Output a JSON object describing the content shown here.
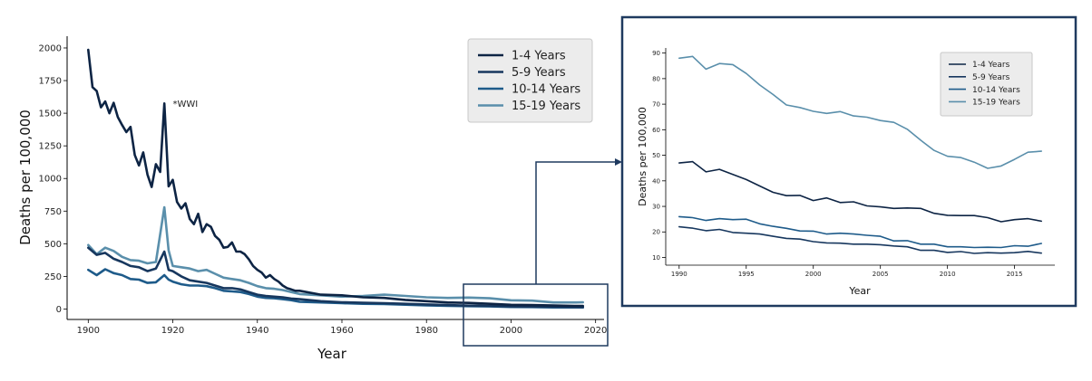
{
  "chart_data": [
    {
      "type": "line",
      "xlabel": "Year",
      "ylabel": "Deaths per 100,000",
      "xlim": [
        1895,
        2022
      ],
      "ylim": [
        -80,
        2090
      ],
      "xticks": [
        1900,
        1920,
        1940,
        1960,
        1980,
        2000,
        2020
      ],
      "yticks": [
        0,
        250,
        500,
        750,
        1000,
        1250,
        1500,
        1750,
        2000
      ],
      "legend_position": "top-right",
      "annotation": {
        "text": "*WWI",
        "x": 1920,
        "y": 1550
      },
      "grid": false,
      "series": [
        {
          "name": "1-4 Years",
          "color": "#0d2444",
          "x": [
            1900,
            1901,
            1902,
            1903,
            1904,
            1905,
            1906,
            1907,
            1908,
            1909,
            1910,
            1911,
            1912,
            1913,
            1914,
            1915,
            1916,
            1917,
            1918,
            1919,
            1920,
            1921,
            1922,
            1923,
            1924,
            1925,
            1926,
            1927,
            1928,
            1929,
            1930,
            1931,
            1932,
            1933,
            1934,
            1935,
            1936,
            1937,
            1938,
            1939,
            1940,
            1941,
            1942,
            1943,
            1944,
            1945,
            1946,
            1947,
            1948,
            1949,
            1950,
            1955,
            1960,
            1965,
            1970,
            1975,
            1980,
            1985,
            1990,
            1995,
            2000,
            2005,
            2010,
            2015,
            2017
          ],
          "values": [
            1985,
            1700,
            1670,
            1545,
            1590,
            1500,
            1580,
            1470,
            1410,
            1355,
            1395,
            1180,
            1100,
            1200,
            1030,
            935,
            1110,
            1050,
            1575,
            940,
            990,
            820,
            770,
            810,
            690,
            650,
            730,
            590,
            650,
            630,
            560,
            530,
            470,
            475,
            510,
            440,
            440,
            420,
            380,
            330,
            300,
            280,
            240,
            260,
            230,
            210,
            180,
            160,
            150,
            140,
            140,
            110,
            105,
            90,
            85,
            70,
            60,
            50,
            47,
            40,
            32,
            30,
            27,
            24,
            24
          ]
        },
        {
          "name": "5-9 Years",
          "color": "#17375e",
          "x": [
            1900,
            1902,
            1904,
            1906,
            1908,
            1910,
            1912,
            1914,
            1916,
            1918,
            1919,
            1920,
            1922,
            1924,
            1926,
            1928,
            1930,
            1932,
            1934,
            1936,
            1938,
            1940,
            1942,
            1944,
            1946,
            1948,
            1950,
            1955,
            1960,
            1965,
            1970,
            1975,
            1980,
            1985,
            1990,
            1995,
            2000,
            2005,
            2010,
            2015,
            2017
          ],
          "values": [
            470,
            415,
            430,
            385,
            360,
            330,
            320,
            290,
            310,
            440,
            300,
            290,
            250,
            220,
            210,
            200,
            180,
            160,
            160,
            150,
            130,
            110,
            100,
            95,
            90,
            80,
            75,
            60,
            52,
            48,
            45,
            40,
            35,
            30,
            26,
            24,
            20,
            19,
            18,
            16,
            15
          ]
        },
        {
          "name": "10-14 Years",
          "color": "#1e5b8a",
          "x": [
            1900,
            1902,
            1904,
            1906,
            1908,
            1910,
            1912,
            1914,
            1916,
            1918,
            1919,
            1920,
            1922,
            1924,
            1926,
            1928,
            1930,
            1932,
            1934,
            1936,
            1938,
            1940,
            1942,
            1944,
            1946,
            1948,
            1950,
            1955,
            1960,
            1965,
            1970,
            1975,
            1980,
            1985,
            1990,
            1995,
            2000,
            2005,
            2010,
            2015,
            2017
          ],
          "values": [
            300,
            260,
            305,
            275,
            260,
            230,
            225,
            200,
            205,
            260,
            225,
            210,
            190,
            180,
            180,
            175,
            160,
            140,
            135,
            130,
            115,
            95,
            85,
            82,
            75,
            68,
            55,
            50,
            45,
            40,
            38,
            33,
            28,
            25,
            22,
            20,
            16,
            15,
            12,
            12,
            12
          ]
        },
        {
          "name": "15-19 Years",
          "color": "#5a8fab",
          "x": [
            1900,
            1902,
            1904,
            1906,
            1908,
            1910,
            1912,
            1914,
            1916,
            1918,
            1919,
            1920,
            1922,
            1924,
            1926,
            1928,
            1930,
            1932,
            1934,
            1936,
            1938,
            1940,
            1942,
            1944,
            1946,
            1948,
            1950,
            1955,
            1960,
            1965,
            1970,
            1975,
            1980,
            1985,
            1990,
            1995,
            2000,
            2005,
            2010,
            2015,
            2017
          ],
          "values": [
            490,
            420,
            470,
            445,
            400,
            375,
            370,
            350,
            360,
            780,
            450,
            330,
            320,
            310,
            290,
            300,
            270,
            240,
            230,
            220,
            200,
            175,
            160,
            155,
            145,
            130,
            115,
            105,
            95,
            100,
            110,
            100,
            90,
            85,
            88,
            82,
            67,
            64,
            50,
            50,
            52
          ]
        }
      ]
    },
    {
      "type": "line",
      "xlabel": "Year",
      "ylabel": "Deaths per 100,000",
      "xlim": [
        1989,
        2018
      ],
      "ylim": [
        7,
        92
      ],
      "xticks": [
        1990,
        1995,
        2000,
        2005,
        2010,
        2015
      ],
      "yticks": [
        10,
        20,
        30,
        40,
        50,
        60,
        70,
        80,
        90
      ],
      "legend_position": "top-right",
      "grid": false,
      "series": [
        {
          "name": "1-4 Years",
          "color": "#0d2444",
          "x": [
            1990,
            1991,
            1992,
            1993,
            1994,
            1995,
            1996,
            1997,
            1998,
            1999,
            2000,
            2001,
            2002,
            2003,
            2004,
            2005,
            2006,
            2007,
            2008,
            2009,
            2010,
            2011,
            2012,
            2013,
            2014,
            2015,
            2016,
            2017
          ],
          "values": [
            47,
            47.5,
            43.5,
            44.5,
            42.5,
            40.5,
            38,
            35.5,
            34.2,
            34.3,
            32.3,
            33.3,
            31.5,
            31.8,
            30.2,
            29.8,
            29.2,
            29.4,
            29.2,
            27.3,
            26.5,
            26.4,
            26.4,
            25.6,
            24,
            24.8,
            25.2,
            24.2
          ]
        },
        {
          "name": "5-9 Years",
          "color": "#17375e",
          "x": [
            1990,
            1991,
            1992,
            1993,
            1994,
            1995,
            1996,
            1997,
            1998,
            1999,
            2000,
            2001,
            2002,
            2003,
            2004,
            2005,
            2006,
            2007,
            2008,
            2009,
            2010,
            2011,
            2012,
            2013,
            2014,
            2015,
            2016,
            2017
          ],
          "values": [
            22,
            21.5,
            20.5,
            21,
            19.8,
            19.5,
            19.2,
            18.3,
            17.5,
            17.2,
            16.2,
            15.7,
            15.6,
            15.2,
            15.2,
            15,
            14.5,
            14.2,
            12.8,
            12.8,
            12,
            12.3,
            11.6,
            11.9,
            11.7,
            11.9,
            12.4,
            11.7
          ]
        },
        {
          "name": "10-14 Years",
          "color": "#1e5b8a",
          "x": [
            1990,
            1991,
            1992,
            1993,
            1994,
            1995,
            1996,
            1997,
            1998,
            1999,
            2000,
            2001,
            2002,
            2003,
            2004,
            2005,
            2006,
            2007,
            2008,
            2009,
            2010,
            2011,
            2012,
            2013,
            2014,
            2015,
            2016,
            2017
          ],
          "values": [
            26,
            25.6,
            24.5,
            25.2,
            24.8,
            25,
            23.2,
            22.2,
            21.4,
            20.4,
            20.3,
            19.2,
            19.5,
            19.2,
            18.7,
            18.3,
            16.5,
            16.6,
            15.2,
            15.2,
            14.2,
            14.2,
            13.9,
            14,
            13.9,
            14.6,
            14.4,
            15.5
          ]
        },
        {
          "name": "15-19 Years",
          "color": "#5a8fab",
          "x": [
            1990,
            1991,
            1992,
            1993,
            1994,
            1995,
            1996,
            1997,
            1998,
            1999,
            2000,
            2001,
            2002,
            2003,
            2004,
            2005,
            2006,
            2007,
            2008,
            2009,
            2010,
            2011,
            2012,
            2013,
            2014,
            2015,
            2016,
            2017
          ],
          "values": [
            88,
            88.7,
            83.7,
            85.9,
            85.5,
            82,
            77.5,
            73.8,
            69.7,
            68.7,
            67.2,
            66.4,
            67.1,
            65.4,
            64.9,
            63.6,
            62.9,
            60.2,
            55.9,
            51.9,
            49.6,
            49.1,
            47.3,
            44.9,
            45.8,
            48.4,
            51.2,
            51.6
          ]
        }
      ]
    }
  ]
}
